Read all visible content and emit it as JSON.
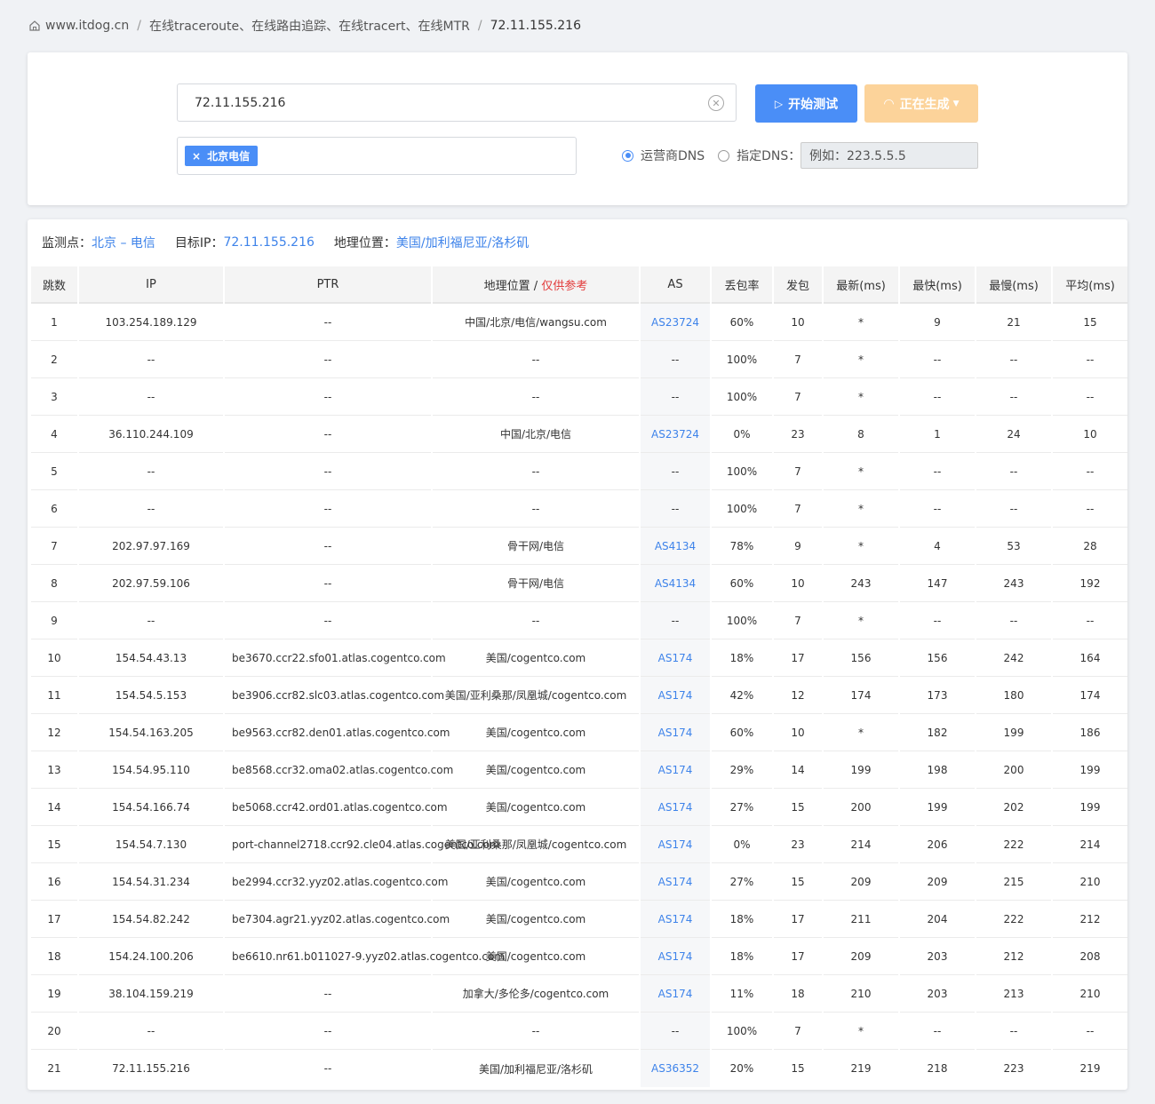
{
  "breadcrumb": {
    "site": "www.itdog.cn",
    "section": "在线traceroute、在线路由追踪、在线tracert、在线MTR",
    "current": "72.11.155.216"
  },
  "form": {
    "ip_value": "72.11.155.216",
    "start_label": "开始测试",
    "generating_label": "正在生成",
    "tag_label": "北京电信",
    "radio_isp_label": "运营商DNS",
    "radio_custom_label": "指定DNS：",
    "dns_placeholder": "例如：223.5.5.5"
  },
  "info": {
    "monitor_label": "监测点：",
    "monitor_value": "北京 – 电信",
    "target_label": "目标IP：",
    "target_value": "72.11.155.216",
    "geo_label": "地理位置：",
    "geo_value": "美国/加利福尼亚/洛杉矶"
  },
  "table": {
    "headers": {
      "hop": "跳数",
      "ip": "IP",
      "ptr": "PTR",
      "geo": "地理位置",
      "geo_sep": "/",
      "geo_ref": "仅供参考",
      "as": "AS",
      "loss": "丢包率",
      "sent": "发包",
      "last": "最新(ms)",
      "best": "最快(ms)",
      "worst": "最慢(ms)",
      "avg": "平均(ms)"
    },
    "rows": [
      [
        "1",
        "103.254.189.129",
        "--",
        "中国/北京/电信/wangsu.com",
        "AS23724",
        "60%",
        "10",
        "*",
        "9",
        "21",
        "15"
      ],
      [
        "2",
        "--",
        "--",
        "--",
        "--",
        "100%",
        "7",
        "*",
        "--",
        "--",
        "--"
      ],
      [
        "3",
        "--",
        "--",
        "--",
        "--",
        "100%",
        "7",
        "*",
        "--",
        "--",
        "--"
      ],
      [
        "4",
        "36.110.244.109",
        "--",
        "中国/北京/电信",
        "AS23724",
        "0%",
        "23",
        "8",
        "1",
        "24",
        "10"
      ],
      [
        "5",
        "--",
        "--",
        "--",
        "--",
        "100%",
        "7",
        "*",
        "--",
        "--",
        "--"
      ],
      [
        "6",
        "--",
        "--",
        "--",
        "--",
        "100%",
        "7",
        "*",
        "--",
        "--",
        "--"
      ],
      [
        "7",
        "202.97.97.169",
        "--",
        "骨干网/电信",
        "AS4134",
        "78%",
        "9",
        "*",
        "4",
        "53",
        "28"
      ],
      [
        "8",
        "202.97.59.106",
        "--",
        "骨干网/电信",
        "AS4134",
        "60%",
        "10",
        "243",
        "147",
        "243",
        "192"
      ],
      [
        "9",
        "--",
        "--",
        "--",
        "--",
        "100%",
        "7",
        "*",
        "--",
        "--",
        "--"
      ],
      [
        "10",
        "154.54.43.13",
        "be3670.ccr22.sfo01.atlas.cogentco.com",
        "美国/cogentco.com",
        "AS174",
        "18%",
        "17",
        "156",
        "156",
        "242",
        "164"
      ],
      [
        "11",
        "154.54.5.153",
        "be3906.ccr82.slc03.atlas.cogentco.com",
        "美国/亚利桑那/凤凰城/cogentco.com",
        "AS174",
        "42%",
        "12",
        "174",
        "173",
        "180",
        "174"
      ],
      [
        "12",
        "154.54.163.205",
        "be9563.ccr82.den01.atlas.cogentco.com",
        "美国/cogentco.com",
        "AS174",
        "60%",
        "10",
        "*",
        "182",
        "199",
        "186"
      ],
      [
        "13",
        "154.54.95.110",
        "be8568.ccr32.oma02.atlas.cogentco.com",
        "美国/cogentco.com",
        "AS174",
        "29%",
        "14",
        "199",
        "198",
        "200",
        "199"
      ],
      [
        "14",
        "154.54.166.74",
        "be5068.ccr42.ord01.atlas.cogentco.com",
        "美国/cogentco.com",
        "AS174",
        "27%",
        "15",
        "200",
        "199",
        "202",
        "199"
      ],
      [
        "15",
        "154.54.7.130",
        "port-channel2718.ccr92.cle04.atlas.cogentco.com",
        "美国/亚利桑那/凤凰城/cogentco.com",
        "AS174",
        "0%",
        "23",
        "214",
        "206",
        "222",
        "214"
      ],
      [
        "16",
        "154.54.31.234",
        "be2994.ccr32.yyz02.atlas.cogentco.com",
        "美国/cogentco.com",
        "AS174",
        "27%",
        "15",
        "209",
        "209",
        "215",
        "210"
      ],
      [
        "17",
        "154.54.82.242",
        "be7304.agr21.yyz02.atlas.cogentco.com",
        "美国/cogentco.com",
        "AS174",
        "18%",
        "17",
        "211",
        "204",
        "222",
        "212"
      ],
      [
        "18",
        "154.24.100.206",
        "be6610.nr61.b011027-9.yyz02.atlas.cogentco.com",
        "美国/cogentco.com",
        "AS174",
        "18%",
        "17",
        "209",
        "203",
        "212",
        "208"
      ],
      [
        "19",
        "38.104.159.219",
        "--",
        "加拿大/多伦多/cogentco.com",
        "AS174",
        "11%",
        "18",
        "210",
        "203",
        "213",
        "210"
      ],
      [
        "20",
        "--",
        "--",
        "--",
        "--",
        "100%",
        "7",
        "*",
        "--",
        "--",
        "--"
      ],
      [
        "21",
        "72.11.155.216",
        "--",
        "美国/加利福尼亚/洛杉矶",
        "AS36352",
        "20%",
        "15",
        "219",
        "218",
        "223",
        "219"
      ]
    ]
  }
}
